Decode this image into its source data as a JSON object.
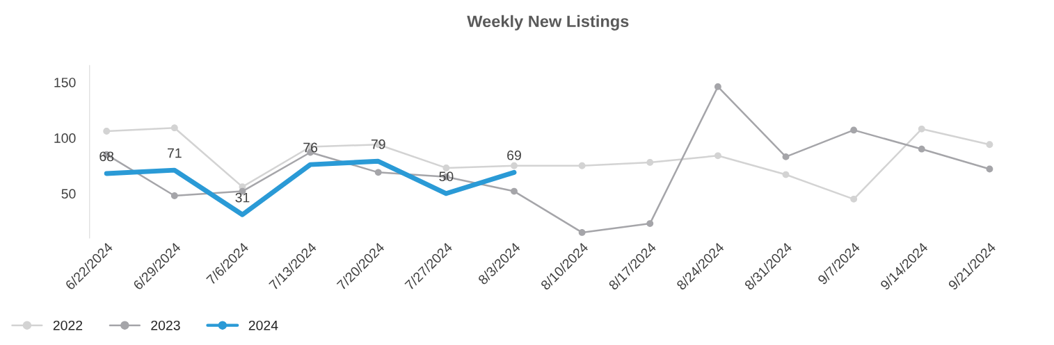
{
  "chart_data": {
    "type": "line",
    "title": "Weekly New Listings",
    "categories": [
      "6/22/2024",
      "6/29/2024",
      "7/6/2024",
      "7/13/2024",
      "7/20/2024",
      "7/27/2024",
      "8/3/2024",
      "8/10/2024",
      "8/17/2024",
      "8/24/2024",
      "8/31/2024",
      "9/7/2024",
      "9/14/2024",
      "9/21/2024"
    ],
    "series": [
      {
        "name": "2022",
        "color": "#d3d3d3",
        "marker": "circle",
        "values": [
          106,
          109,
          56,
          92,
          94,
          73,
          75,
          75,
          78,
          84,
          67,
          45,
          108,
          94
        ]
      },
      {
        "name": "2023",
        "color": "#a5a5a9",
        "marker": "circle",
        "values": [
          85,
          48,
          52,
          87,
          69,
          65,
          52,
          15,
          23,
          146,
          83,
          107,
          90,
          72
        ]
      },
      {
        "name": "2024",
        "color": "#2a9ad6",
        "marker": "none",
        "values": [
          68,
          71,
          31,
          76,
          79,
          50,
          69,
          null,
          null,
          null,
          null,
          null,
          null,
          null
        ],
        "value_labels": [
          "68",
          "71",
          "31",
          "76",
          "79",
          "50",
          "69",
          null,
          null,
          null,
          null,
          null,
          null,
          null
        ]
      }
    ],
    "ylim": [
      10,
      165
    ],
    "yticks": [
      50,
      100,
      150
    ],
    "grid": false,
    "legend": "bottom left"
  }
}
